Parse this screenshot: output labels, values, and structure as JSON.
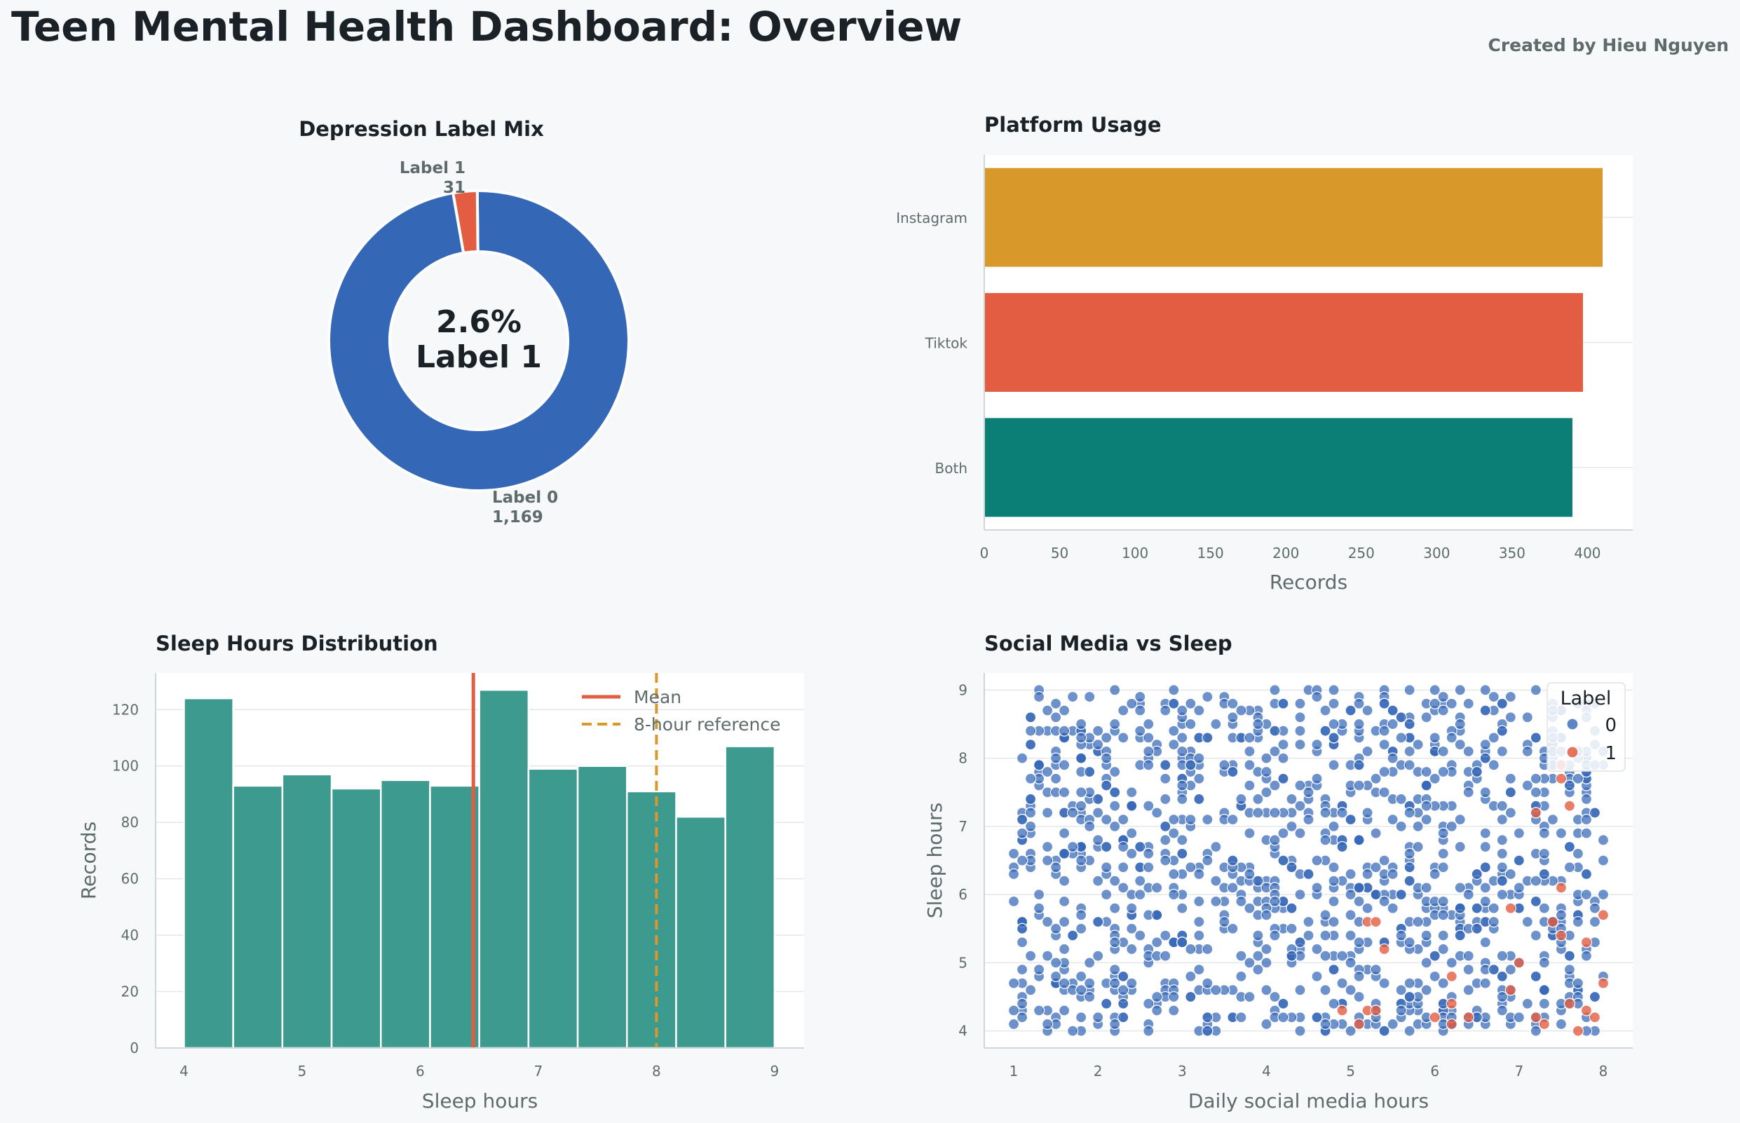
{
  "header": {
    "title": "Teen Mental Health Dashboard: Overview",
    "credit": "Created by Hieu Nguyen"
  },
  "colors": {
    "blue": "#3567b7",
    "red": "#e25d42",
    "gold": "#d8982a",
    "teal": "#0b7f75",
    "hist": "#3d9a8f",
    "text": "#1b2227",
    "muted": "#5f6b6a"
  },
  "chart_data": [
    {
      "type": "pie",
      "title": "Depression Label Mix",
      "slices": [
        {
          "label": "Label 0",
          "value": 1169,
          "value_label": "1,169",
          "color": "#3567b7"
        },
        {
          "label": "Label 1",
          "value": 31,
          "value_label": "31",
          "color": "#e25d42"
        }
      ],
      "center_percent": "2.6%",
      "center_label": "Label 1"
    },
    {
      "type": "bar",
      "orientation": "horizontal",
      "title": "Platform Usage",
      "categories": [
        "Instagram",
        "Tiktok",
        "Both"
      ],
      "values": [
        410,
        397,
        390
      ],
      "colors": [
        "#d8982a",
        "#e25d42",
        "#0b7f75"
      ],
      "xlabel": "Records",
      "xlim": [
        0,
        430
      ],
      "xticks": [
        0,
        50,
        100,
        150,
        200,
        250,
        300,
        350,
        400
      ]
    },
    {
      "type": "bar",
      "subtype": "histogram",
      "title": "Sleep Hours Distribution",
      "bin_edges": [
        4.0,
        4.4167,
        4.8333,
        5.25,
        5.6667,
        6.0833,
        6.5,
        6.9167,
        7.3333,
        7.75,
        8.1667,
        8.5833,
        9.0
      ],
      "values": [
        124,
        93,
        97,
        92,
        95,
        93,
        127,
        99,
        100,
        91,
        82,
        107
      ],
      "xlabel": "Sleep hours",
      "ylabel": "Records",
      "xlim": [
        3.76,
        9.25
      ],
      "ylim": [
        0,
        133
      ],
      "xticks": [
        4,
        5,
        6,
        7,
        8,
        9
      ],
      "yticks": [
        0,
        20,
        40,
        60,
        80,
        100,
        120
      ],
      "mean": 6.45,
      "reference": 8,
      "legend": [
        "Mean",
        "8-hour reference"
      ],
      "legend_position": "top-right"
    },
    {
      "type": "scatter",
      "title": "Social Media vs Sleep",
      "xlabel": "Daily social media hours",
      "ylabel": "Sleep hours",
      "xlim": [
        0.65,
        8.35
      ],
      "ylim": [
        3.75,
        9.25
      ],
      "xticks": [
        1,
        2,
        3,
        4,
        5,
        6,
        7,
        8
      ],
      "yticks": [
        4,
        5,
        6,
        7,
        8,
        9
      ],
      "legend_title": "Label",
      "legend_position": "top-right",
      "series": [
        {
          "name": "0",
          "color": "#3567b7",
          "count": 1169
        },
        {
          "name": "1",
          "color": "#e25d42",
          "count": 31,
          "points": [
            [
              5.2,
              5.6
            ],
            [
              5.3,
              5.6
            ],
            [
              5.2,
              4.3
            ],
            [
              5.3,
              4.3
            ],
            [
              5.1,
              4.1
            ],
            [
              5.4,
              5.2
            ],
            [
              6.2,
              4.4
            ],
            [
              6.2,
              4.1
            ],
            [
              6.4,
              4.2
            ],
            [
              6.2,
              4.8
            ],
            [
              6.9,
              5.8
            ],
            [
              6.9,
              4.6
            ],
            [
              7.2,
              4.2
            ],
            [
              7.3,
              4.1
            ],
            [
              7.4,
              5.6
            ],
            [
              7.5,
              5.4
            ],
            [
              7.6,
              4.4
            ],
            [
              7.8,
              4.3
            ],
            [
              7.9,
              4.2
            ],
            [
              7.8,
              5.3
            ],
            [
              8.0,
              5.7
            ],
            [
              8.0,
              4.7
            ],
            [
              7.5,
              6.1
            ],
            [
              7.5,
              7.9
            ],
            [
              7.5,
              7.7
            ],
            [
              7.6,
              7.3
            ],
            [
              7.2,
              7.2
            ],
            [
              6.0,
              4.2
            ],
            [
              4.9,
              4.3
            ],
            [
              7.0,
              5.0
            ],
            [
              7.7,
              4.0
            ]
          ]
        }
      ]
    }
  ]
}
